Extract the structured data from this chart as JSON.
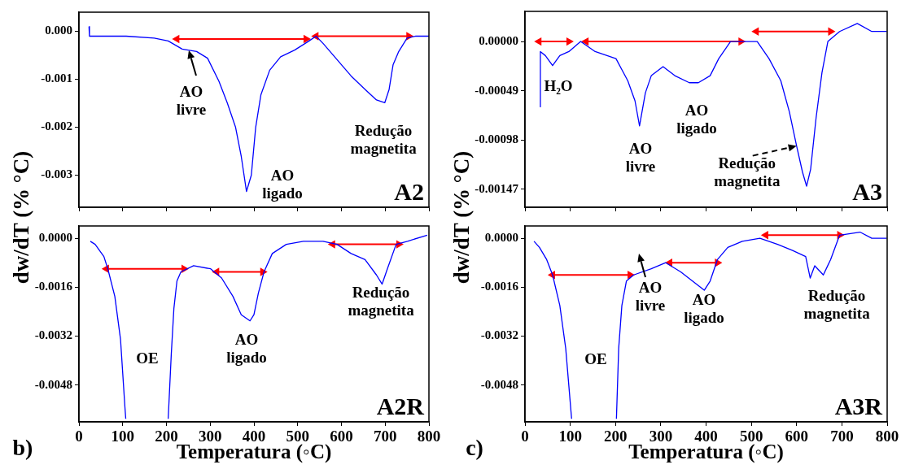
{
  "chart_data": [
    {
      "type": "line",
      "title": "A2",
      "ylabel": "dw/dT (% °C)",
      "xlim": [
        0,
        800
      ],
      "xticks": [
        0,
        100,
        200,
        300,
        400,
        500,
        600,
        700,
        800
      ],
      "ylim": [
        -0.00367,
        0.0004
      ],
      "yticks": [
        {
          "value": 0,
          "label": "0.000"
        },
        {
          "value": -0.001,
          "label": "-0.001"
        },
        {
          "value": -0.002,
          "label": "-0.002"
        },
        {
          "value": -0.003,
          "label": "-0.003"
        }
      ],
      "tick_labels": "y",
      "grid": false,
      "legend": false,
      "line_style": "solid",
      "series": [
        {
          "color": "#0000ff",
          "marker": "none",
          "x": [
            23,
            24,
            108,
            172,
            204,
            236,
            269,
            294,
            320,
            339,
            358,
            371,
            383,
            394,
            404,
            416,
            436,
            461,
            493,
            526,
            542,
            558,
            590,
            622,
            654,
            680,
            699,
            709,
            718,
            731,
            750,
            770,
            800
          ],
          "values": [
            0.0001,
            -0.0001,
            -0.0001,
            -0.00014,
            -0.0002,
            -0.00037,
            -0.00042,
            -0.00056,
            -0.00104,
            -0.00149,
            -0.002,
            -0.00261,
            -0.00334,
            -0.003,
            -0.002,
            -0.00132,
            -0.00081,
            -0.00053,
            -0.00039,
            -0.0002,
            -0.0001,
            -0.00025,
            -0.00059,
            -0.00093,
            -0.00121,
            -0.00143,
            -0.00149,
            -0.00121,
            -0.0007,
            -0.00042,
            -0.00014,
            -0.0001,
            -0.0001
          ]
        },
        {
          "color": "#ff0000",
          "marker": "triangle",
          "x": [
            224,
            519
          ],
          "values": [
            -0.00016,
            -0.00016
          ]
        },
        {
          "color": "#ff0000",
          "marker": "triangle",
          "x": [
            542,
            754
          ],
          "values": [
            -0.0001,
            -0.0001
          ]
        }
      ],
      "annotations": [
        "AO\nlivre",
        "AO\nligado",
        "Redução\nmagnetita"
      ]
    },
    {
      "type": "line",
      "title": "A2R",
      "xlabel": "Temperatura (◦C)",
      "xlim": [
        0,
        800
      ],
      "xticks": [
        0,
        100,
        200,
        300,
        400,
        500,
        600,
        700,
        800
      ],
      "ylim": [
        -0.006,
        0.0004
      ],
      "yticks": [
        {
          "value": 0,
          "label": "0.0000"
        },
        {
          "value": -0.0016,
          "label": "-0.0016"
        },
        {
          "value": -0.0032,
          "label": "-0.0032"
        },
        {
          "value": -0.0048,
          "label": "-0.0048"
        }
      ],
      "grid": false,
      "legend": false,
      "line_style": "solid",
      "series": [
        {
          "color": "#0000ff",
          "marker": "none",
          "x": [
            26,
            37,
            57,
            66,
            82,
            95,
            105,
            107,
            150,
            204,
            211,
            217,
            224,
            233,
            262,
            301,
            326,
            352,
            371,
            391,
            400,
            410,
            423,
            442,
            474,
            513,
            558,
            590,
            622,
            654,
            680,
            693,
            705,
            725,
            751,
            796
          ],
          "values": [
            -0.0001,
            -0.0002,
            -0.0006,
            -0.001,
            -0.0019,
            -0.0033,
            -0.0055,
            -0.0059,
            null,
            -0.0059,
            -0.0038,
            -0.0023,
            -0.0014,
            -0.0011,
            -0.0009,
            -0.001,
            -0.0013,
            -0.0019,
            -0.0025,
            -0.0027,
            -0.0025,
            -0.0018,
            -0.0011,
            -0.0005,
            -0.0002,
            -0.0001,
            -0.0001,
            -0.0002,
            -0.0005,
            -0.0007,
            -0.0012,
            -0.0015,
            -0.001,
            -0.0002,
            -0.0001,
            0.0001
          ]
        },
        {
          "color": "#ff0000",
          "marker": "triangle",
          "x": [
            63,
            240
          ],
          "values": [
            -0.001,
            -0.001
          ]
        },
        {
          "color": "#ff0000",
          "marker": "triangle",
          "x": [
            315,
            420
          ],
          "values": [
            -0.0011,
            -0.0011
          ]
        },
        {
          "color": "#ff0000",
          "marker": "triangle",
          "x": [
            580,
            731
          ],
          "values": [
            -0.0002,
            -0.0002
          ]
        }
      ],
      "annotations": [
        "OE",
        "AO\nligado",
        "Redução\nmagnetita",
        "b)"
      ]
    },
    {
      "type": "line",
      "title": "A3",
      "ylabel": "dw/dT (% °C)",
      "xlim": [
        0,
        800
      ],
      "xticks": [
        0,
        100,
        200,
        300,
        400,
        500,
        600,
        700,
        800
      ],
      "ylim": [
        -0.00165,
        0.0003
      ],
      "yticks": [
        {
          "value": 0,
          "label": "0.00000"
        },
        {
          "value": -0.00049,
          "label": "-0.00049"
        },
        {
          "value": -0.00098,
          "label": "-0.00098"
        },
        {
          "value": -0.00147,
          "label": "-0.00147"
        }
      ],
      "tick_labels": "y",
      "grid": false,
      "legend": false,
      "line_style": "solid",
      "series": [
        {
          "color": "#0000ff",
          "marker": "none",
          "x": [
            33,
            34,
            45,
            61,
            77,
            97,
            123,
            155,
            201,
            227,
            243,
            253,
            266,
            279,
            305,
            331,
            363,
            383,
            409,
            428,
            454,
            487,
            513,
            539,
            565,
            584,
            600,
            613,
            622,
            631,
            643,
            656,
            669,
            695,
            734,
            766,
            799
          ],
          "values": [
            -0.00065,
            -0.0001,
            -0.00014,
            -0.00024,
            -0.00014,
            -0.0001,
            0,
            -0.0001,
            -0.00017,
            -0.00039,
            -0.00059,
            -0.00084,
            -0.00051,
            -0.00034,
            -0.00025,
            -0.00034,
            -0.00041,
            -0.00041,
            -0.00034,
            -0.00017,
            0,
            0,
            0,
            -0.00017,
            -0.00039,
            -0.0007,
            -0.00104,
            -0.0013,
            -0.00144,
            -0.00127,
            -0.00076,
            -0.00031,
            0,
            0.0001,
            0.00018,
            0.0001,
            0.0001
          ]
        },
        {
          "color": "#ff0000",
          "marker": "triangle",
          "x": [
            31,
            97
          ],
          "values": [
            0,
            0
          ]
        },
        {
          "color": "#ff0000",
          "marker": "triangle",
          "x": [
            135,
            477
          ],
          "values": [
            0,
            0
          ]
        },
        {
          "color": "#ff0000",
          "marker": "triangle",
          "x": [
            511,
            675
          ],
          "values": [
            0.0001,
            0.0001
          ]
        }
      ],
      "annotations": [
        "H₂O",
        "AO\nlivre",
        "AO\nligado",
        {
          "text": "Redução\nmagnetita",
          "x": 600,
          "y": -0.00104
        }
      ]
    },
    {
      "type": "line",
      "title": "A3R",
      "xlabel": "Temperatura (◦C)",
      "xlim": [
        0,
        800
      ],
      "xticks": [
        0,
        100,
        200,
        300,
        400,
        500,
        600,
        700,
        800
      ],
      "ylim": [
        -0.006,
        0.0004
      ],
      "yticks": [
        {
          "value": 0,
          "label": "0.0000"
        },
        {
          "value": -0.0016,
          "label": "-0.0016"
        },
        {
          "value": -0.0032,
          "label": "-0.0032"
        },
        {
          "value": -0.0048,
          "label": "-0.0048"
        }
      ],
      "grid": false,
      "legend": false,
      "line_style": "solid",
      "series": [
        {
          "color": "#0000ff",
          "marker": "none",
          "x": [
            20,
            32,
            48,
            61,
            77,
            90,
            103,
            150,
            202,
            207,
            214,
            224,
            240,
            279,
            311,
            344,
            370,
            396,
            409,
            425,
            448,
            480,
            519,
            558,
            591,
            620,
            630,
            640,
            659,
            675,
            695,
            740,
            766,
            799
          ],
          "values": [
            -0.0001,
            -0.0003,
            -0.0007,
            -0.0012,
            -0.0022,
            -0.0036,
            -0.0059,
            null,
            -0.0059,
            -0.0036,
            -0.0022,
            -0.0014,
            -0.0012,
            -0.001,
            -0.0008,
            -0.0011,
            -0.0014,
            -0.0017,
            -0.0014,
            -0.0007,
            -0.0003,
            -0.0001,
            0,
            -0.0002,
            -0.0004,
            -0.0006,
            -0.0013,
            -0.0009,
            -0.0012,
            -0.0007,
            0.0001,
            0.0002,
            0,
            0
          ]
        },
        {
          "color": "#ff0000",
          "marker": "triangle",
          "x": [
            61,
            232
          ],
          "values": [
            -0.0012,
            -0.0012
          ]
        },
        {
          "color": "#ff0000",
          "marker": "triangle",
          "x": [
            320,
            425
          ],
          "values": [
            -0.0008,
            -0.0008
          ]
        },
        {
          "color": "#ff0000",
          "marker": "triangle",
          "x": [
            532,
            695
          ],
          "values": [
            0.0001,
            0.0001
          ]
        }
      ],
      "annotations": [
        "OE",
        "AO\nlivre",
        "AO\nligado",
        "Redução\nmagnetita",
        "c)"
      ]
    }
  ]
}
